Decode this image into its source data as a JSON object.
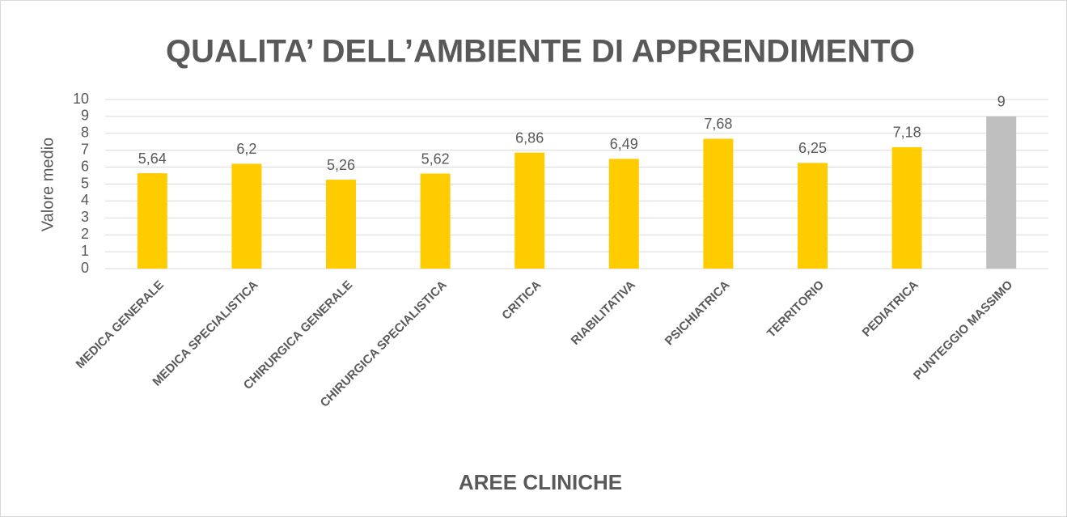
{
  "chart_data": {
    "type": "bar",
    "title": "QUALITA’ DELL’AMBIENTE DI APPRENDIMENTO",
    "x_label": "AREE CLINICHE",
    "y_label": "Valore medio",
    "categories": [
      "MEDICA GENERALE",
      "MEDICA SPECIALISTICA",
      "CHIRURGICA GENERALE",
      "CHIRURGICA SPECIALISTICA",
      "CRITICA",
      "RIABILITATIVA",
      "PSICHIATRICA",
      "TERRITORIO",
      "PEDIATRICA",
      "PUNTEGGIO MASSIMO"
    ],
    "values": [
      5.64,
      6.2,
      5.26,
      5.62,
      6.86,
      6.49,
      7.68,
      6.25,
      7.18,
      9
    ],
    "value_labels": [
      "5,64",
      "6,2",
      "5,26",
      "5,62",
      "6,86",
      "6,49",
      "7,68",
      "6,25",
      "7,18",
      "9"
    ],
    "colors": [
      "#FFCC00",
      "#FFCC00",
      "#FFCC00",
      "#FFCC00",
      "#FFCC00",
      "#FFCC00",
      "#FFCC00",
      "#FFCC00",
      "#FFCC00",
      "#BFBFBF"
    ],
    "ylim": [
      0,
      10
    ],
    "yticks": [
      0,
      1,
      2,
      3,
      4,
      5,
      6,
      7,
      8,
      9,
      10
    ],
    "grid": true
  }
}
